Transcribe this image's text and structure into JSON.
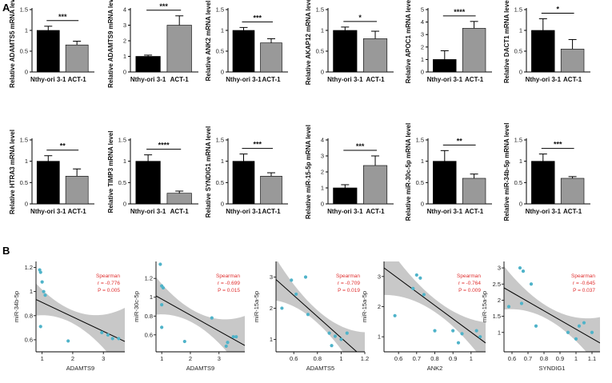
{
  "panel_labels": [
    "A",
    "B"
  ],
  "colors": {
    "control": "#000000",
    "act": "#999999",
    "points": "#4fb3c9",
    "band": "#c8c8c8",
    "stat_text": "#e03030"
  },
  "chart_data": [
    {
      "type": "bar",
      "ylabel": "Relative ADAMTS5 mRNA level",
      "categories": [
        "Nthy-ori 3-1",
        "ACT-1"
      ],
      "values": [
        1.0,
        0.65
      ],
      "errors": [
        0.1,
        0.09
      ],
      "sig": "***",
      "yticks": [
        0.0,
        0.5,
        1.0,
        1.5
      ],
      "ylim": [
        0,
        1.5
      ]
    },
    {
      "type": "bar",
      "ylabel": "Relative ADAMTS9 mRNA level",
      "categories": [
        "Nthy-ori 3-1",
        "ACT-1"
      ],
      "values": [
        1.0,
        3.0
      ],
      "errors": [
        0.08,
        0.6
      ],
      "sig": "***",
      "yticks": [
        0,
        1,
        2,
        3,
        4
      ],
      "ylim": [
        0,
        4
      ]
    },
    {
      "type": "bar",
      "ylabel": "Relative ANK2 mRNA level",
      "categories": [
        "Nthy-ori 3-1",
        "ACT-1"
      ],
      "values": [
        1.0,
        0.7
      ],
      "errors": [
        0.07,
        0.1
      ],
      "sig": "***",
      "yticks": [
        0.0,
        0.5,
        1.0,
        1.5
      ],
      "ylim": [
        0,
        1.5
      ]
    },
    {
      "type": "bar",
      "ylabel": "Relative AKAP12 mRNA level",
      "categories": [
        "Nthy-ori 3-1",
        "ACT-1"
      ],
      "values": [
        1.0,
        0.8
      ],
      "errors": [
        0.08,
        0.18
      ],
      "sig": "*",
      "yticks": [
        0.0,
        0.5,
        1.0,
        1.5
      ],
      "ylim": [
        0,
        1.5
      ]
    },
    {
      "type": "bar",
      "ylabel": "Relative APOC1 mRNA level",
      "categories": [
        "Nthy-ori 3-1",
        "ACT-1"
      ],
      "values": [
        1.0,
        3.5
      ],
      "errors": [
        0.7,
        0.55
      ],
      "sig": "****",
      "yticks": [
        0,
        1,
        2,
        3,
        4,
        5
      ],
      "ylim": [
        0,
        5
      ]
    },
    {
      "type": "bar",
      "ylabel": "Relative DACT1 mRNA level",
      "categories": [
        "Nthy-ori 3-1",
        "ACT-1"
      ],
      "values": [
        1.0,
        0.55
      ],
      "errors": [
        0.28,
        0.23
      ],
      "sig": "*",
      "yticks": [
        0.0,
        0.5,
        1.0,
        1.5
      ],
      "ylim": [
        0,
        1.5
      ]
    },
    {
      "type": "bar",
      "ylabel": "Relative HTRA3 mRNA level",
      "categories": [
        "Nthy-ori 3-1",
        "ACT-1"
      ],
      "values": [
        1.0,
        0.65
      ],
      "errors": [
        0.13,
        0.17
      ],
      "sig": "**",
      "yticks": [
        0.0,
        0.5,
        1.0,
        1.5
      ],
      "ylim": [
        0,
        1.5
      ]
    },
    {
      "type": "bar",
      "ylabel": "Relative TIMP3 mRNA level",
      "categories": [
        "Nthy-ori 3-1",
        "ACT-1"
      ],
      "values": [
        1.0,
        0.25
      ],
      "errors": [
        0.15,
        0.05
      ],
      "sig": "****",
      "yticks": [
        0.0,
        0.5,
        1.0,
        1.5
      ],
      "ylim": [
        0,
        1.5
      ]
    },
    {
      "type": "bar",
      "ylabel": "Relative SYNDIG1 mRNA level",
      "categories": [
        "Nthy-ori 3-1",
        "ACT-1"
      ],
      "values": [
        1.0,
        0.65
      ],
      "errors": [
        0.17,
        0.08
      ],
      "sig": "***",
      "yticks": [
        0.0,
        0.5,
        1.0,
        1.5
      ],
      "ylim": [
        0,
        1.5
      ]
    },
    {
      "type": "bar",
      "ylabel": "Relative miR-15-5p mRNA level",
      "categories": [
        "Nthy-ori 3-1",
        "ACT-1"
      ],
      "values": [
        1.0,
        2.4
      ],
      "errors": [
        0.2,
        0.6
      ],
      "sig": "***",
      "yticks": [
        0,
        1,
        2,
        3,
        4
      ],
      "ylim": [
        0,
        4
      ]
    },
    {
      "type": "bar",
      "ylabel": "Relative miR-30c-5p mRNA level",
      "categories": [
        "Nthy-ori 3-1",
        "ACT-1"
      ],
      "values": [
        1.0,
        0.6
      ],
      "errors": [
        0.25,
        0.1
      ],
      "sig": "**",
      "yticks": [
        0.0,
        0.5,
        1.0,
        1.5
      ],
      "ylim": [
        0,
        1.5
      ]
    },
    {
      "type": "bar",
      "ylabel": "Relative miR-34b-5p mRNA level",
      "categories": [
        "Nthy-ori 3-1",
        "ACT-1"
      ],
      "values": [
        1.0,
        0.6
      ],
      "errors": [
        0.17,
        0.04
      ],
      "sig": "***",
      "yticks": [
        0.0,
        0.5,
        1.0,
        1.5
      ],
      "ylim": [
        0,
        1.5
      ]
    },
    {
      "type": "scatter",
      "xlabel": "ADAMTS9",
      "ylabel": "miR-34b-5p",
      "stat_title": "Spearman",
      "r": "r = -0.776",
      "p": "P = 0.005",
      "xlim": [
        0.8,
        3.7
      ],
      "ylim": [
        0.5,
        1.25
      ],
      "xticks": [
        1,
        2,
        3
      ],
      "yticks": [
        0.6,
        0.8,
        1.0,
        1.2
      ],
      "x": [
        0.92,
        0.95,
        1.0,
        1.05,
        1.1,
        0.95,
        1.85,
        2.95,
        3.15,
        3.3,
        3.5
      ],
      "y": [
        1.18,
        1.16,
        1.08,
        1.0,
        0.97,
        0.71,
        0.59,
        0.66,
        0.64,
        0.61,
        0.61
      ],
      "fit": [
        1.03,
        -0.12
      ]
    },
    {
      "type": "scatter",
      "xlabel": "ADAMTS9",
      "ylabel": "miR-30c-5p",
      "stat_title": "Spearman",
      "r": "r = -0.699",
      "p": "P = 0.015",
      "xlim": [
        0.8,
        3.9
      ],
      "ylim": [
        0.42,
        1.38
      ],
      "xticks": [
        1,
        2,
        3
      ],
      "yticks": [
        0.6,
        0.8,
        1.0,
        1.2
      ],
      "x": [
        0.95,
        1.0,
        1.05,
        1.0,
        1.0,
        1.8,
        2.75,
        3.3,
        3.25,
        3.6,
        3.5
      ],
      "y": [
        1.35,
        1.12,
        1.1,
        0.92,
        0.68,
        0.53,
        0.78,
        0.52,
        0.48,
        0.58,
        0.58
      ],
      "fit": [
        1.15,
        -0.17
      ]
    },
    {
      "type": "scatter",
      "xlabel": "ADAMTS5",
      "ylabel": "miR-15a-5p",
      "stat_title": "Spearman",
      "r": "r = -0.709",
      "p": "P = 0.019",
      "xlim": [
        0.45,
        1.2
      ],
      "ylim": [
        0.6,
        3.5
      ],
      "xticks": [
        0.6,
        0.8,
        1.0,
        1.2
      ],
      "yticks": [
        1,
        2,
        3
      ],
      "x": [
        0.5,
        0.58,
        0.7,
        0.62,
        0.72,
        0.9,
        0.95,
        1.0,
        0.92,
        1.05
      ],
      "y": [
        2.0,
        2.9,
        3.0,
        2.45,
        1.8,
        1.2,
        1.1,
        1.0,
        0.8,
        1.2
      ],
      "fit": [
        4.45,
        -3.4
      ]
    },
    {
      "type": "scatter",
      "xlabel": "ANK2",
      "ylabel": "miR-15a-5p",
      "stat_title": "Spearman",
      "r": "r = -0.764",
      "p": "P = 0.009",
      "xlim": [
        0.52,
        1.08
      ],
      "ylim": [
        0.5,
        3.5
      ],
      "xticks": [
        0.6,
        0.7,
        0.8,
        0.9,
        1.0
      ],
      "yticks": [
        1,
        2,
        3
      ],
      "x": [
        0.58,
        0.7,
        0.72,
        0.74,
        0.68,
        0.8,
        0.9,
        0.95,
        0.93,
        1.03,
        1.05
      ],
      "y": [
        1.7,
        3.05,
        2.95,
        2.4,
        2.6,
        1.2,
        1.2,
        1.1,
        0.8,
        1.2,
        1.0
      ],
      "fit": [
        5.6,
        -4.45
      ]
    },
    {
      "type": "scatter",
      "xlabel": "SYNDIG1",
      "ylabel": "miR-15a-5p",
      "stat_title": "Spearman",
      "r": "r = -0.645",
      "p": "P = 0.037",
      "xlim": [
        0.55,
        1.15
      ],
      "ylim": [
        0.4,
        3.2
      ],
      "xticks": [
        0.6,
        0.7,
        0.8,
        0.9,
        1.0,
        1.1
      ],
      "yticks": [
        1.0,
        1.5,
        2.0,
        2.5,
        3.0
      ],
      "x": [
        0.58,
        0.65,
        0.67,
        0.66,
        0.72,
        0.75,
        0.95,
        1.02,
        1.0,
        1.05,
        1.1
      ],
      "y": [
        1.8,
        3.0,
        2.9,
        1.9,
        2.5,
        1.2,
        1.0,
        1.2,
        0.8,
        1.3,
        1.0
      ],
      "fit": [
        3.95,
        -2.85
      ]
    }
  ]
}
